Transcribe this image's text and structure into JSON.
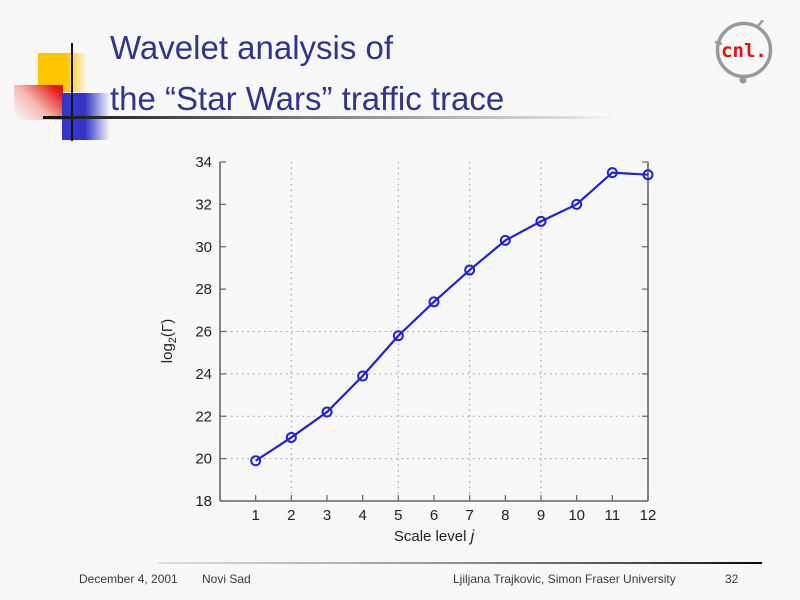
{
  "slide": {
    "title_line1": "Wavelet analysis of",
    "title_line2": "the “Star Wars” traffic trace",
    "title_color": "#32328f",
    "logo": {
      "text": "cnl.",
      "text_color": "#e90d0d",
      "ring_color": "#9a9a9a"
    },
    "footer": {
      "date": "December 4, 2001",
      "venue": "Novi Sad",
      "author": "Ljiljana Trajkovic, Simon Fraser University",
      "page_number": "32"
    }
  },
  "chart_data": {
    "type": "line",
    "title": "",
    "xlabel": "Scale level j",
    "xlabel_text": "Scale level ",
    "xlabel_italic": "j",
    "ylabel": "log2(Γ)",
    "ylabel_base": "log",
    "ylabel_sub": "2",
    "ylabel_rest": "(Γ)",
    "x": [
      1,
      2,
      3,
      4,
      5,
      6,
      7,
      8,
      9,
      10,
      11,
      12
    ],
    "y": [
      19.9,
      21.0,
      22.2,
      23.9,
      25.8,
      27.4,
      28.9,
      30.3,
      31.2,
      32.0,
      33.5,
      33.4
    ],
    "xlim": [
      0,
      12
    ],
    "ylim": [
      18,
      34
    ],
    "xticks": [
      1,
      2,
      3,
      4,
      5,
      6,
      7,
      8,
      9,
      10,
      11,
      12
    ],
    "yticks": [
      18,
      20,
      22,
      24,
      26,
      28,
      30,
      32,
      34
    ],
    "h_gridlines": [
      20,
      22,
      24,
      26
    ],
    "v_gridlines": [
      2,
      5,
      7,
      9
    ],
    "grid_on": true,
    "grid_style": "dotted",
    "legend_position": "none",
    "marker": "circle",
    "line_color": "#2121d8",
    "grid_color": "#999999",
    "axis_color": "#666666",
    "tick_label_color": "#222222"
  }
}
